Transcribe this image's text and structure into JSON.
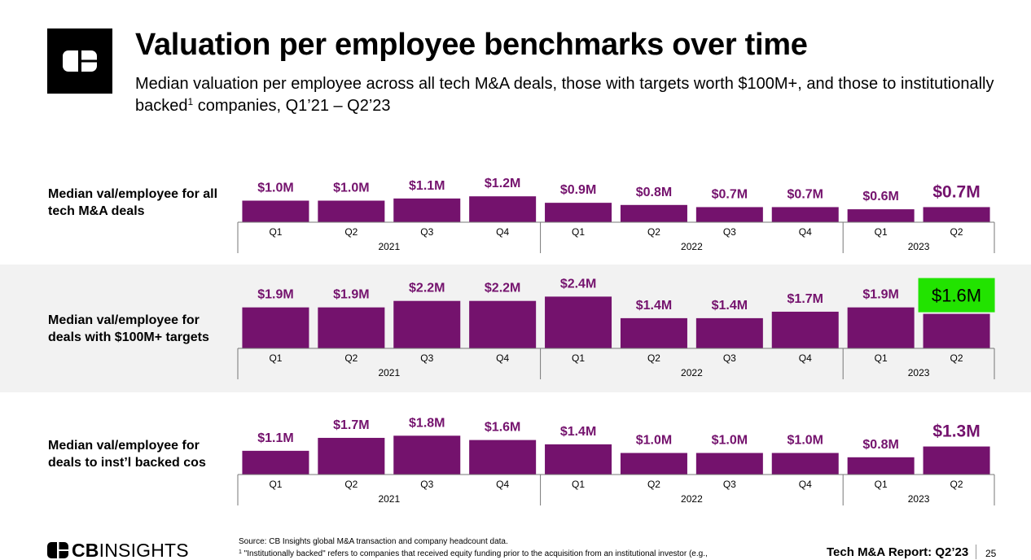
{
  "header": {
    "title": "Valuation per employee benchmarks over time",
    "subtitle_main": "Median valuation per employee across all tech M&A deals, those with targets worth $100M+, and those to institutionally backed",
    "subtitle_sup": "1",
    "subtitle_end": " companies, Q1’21 – Q2’23",
    "logo_icon": "cb-logo-icon"
  },
  "chart_data": [
    {
      "type": "bar",
      "row_label": "Median val/employee for all tech M&A deals",
      "categories": [
        "Q1 2021",
        "Q2 2021",
        "Q3 2021",
        "Q4 2021",
        "Q1 2022",
        "Q2 2022",
        "Q3 2022",
        "Q4 2022",
        "Q1 2023",
        "Q2 2023"
      ],
      "quarters": [
        "Q1",
        "Q2",
        "Q3",
        "Q4",
        "Q1",
        "Q2",
        "Q3",
        "Q4",
        "Q1",
        "Q2"
      ],
      "years": [
        "2021",
        "2022",
        "2023"
      ],
      "values": [
        1.0,
        1.0,
        1.1,
        1.2,
        0.9,
        0.8,
        0.7,
        0.7,
        0.6,
        0.7
      ],
      "labels": [
        "$1.0M",
        "$1.0M",
        "$1.1M",
        "$1.2M",
        "$0.9M",
        "$0.8M",
        "$0.7M",
        "$0.7M",
        "$0.6M",
        "$0.7M"
      ],
      "unit": "$M",
      "bar_color": "#74126d"
    },
    {
      "type": "bar",
      "row_label": "Median val/employee for deals with $100M+ targets",
      "categories": [
        "Q1 2021",
        "Q2 2021",
        "Q3 2021",
        "Q4 2021",
        "Q1 2022",
        "Q2 2022",
        "Q3 2022",
        "Q4 2022",
        "Q1 2023",
        "Q2 2023"
      ],
      "quarters": [
        "Q1",
        "Q2",
        "Q3",
        "Q4",
        "Q1",
        "Q2",
        "Q3",
        "Q4",
        "Q1",
        "Q2"
      ],
      "years": [
        "2021",
        "2022",
        "2023"
      ],
      "values": [
        1.9,
        1.9,
        2.2,
        2.2,
        2.4,
        1.4,
        1.4,
        1.7,
        1.9,
        1.6
      ],
      "labels": [
        "$1.9M",
        "$1.9M",
        "$2.2M",
        "$2.2M",
        "$2.4M",
        "$1.4M",
        "$1.4M",
        "$1.7M",
        "$1.9M",
        "$1.6M"
      ],
      "unit": "$M",
      "bar_color": "#74126d",
      "highlight_index": 9,
      "highlight_color": "#22e300"
    },
    {
      "type": "bar",
      "row_label": "Median val/employee for deals to inst’l backed cos",
      "categories": [
        "Q1 2021",
        "Q2 2021",
        "Q3 2021",
        "Q4 2021",
        "Q1 2022",
        "Q2 2022",
        "Q3 2022",
        "Q4 2022",
        "Q1 2023",
        "Q2 2023"
      ],
      "quarters": [
        "Q1",
        "Q2",
        "Q3",
        "Q4",
        "Q1",
        "Q2",
        "Q3",
        "Q4",
        "Q1",
        "Q2"
      ],
      "years": [
        "2021",
        "2022",
        "2023"
      ],
      "values": [
        1.1,
        1.7,
        1.8,
        1.6,
        1.4,
        1.0,
        1.0,
        1.0,
        0.8,
        1.3
      ],
      "labels": [
        "$1.1M",
        "$1.7M",
        "$1.8M",
        "$1.6M",
        "$1.4M",
        "$1.0M",
        "$1.0M",
        "$1.0M",
        "$0.8M",
        "$1.3M"
      ],
      "unit": "$M",
      "bar_color": "#74126d"
    }
  ],
  "footer": {
    "brand_bold": "CB",
    "brand_rest": "INSIGHTS",
    "brand_icon": "cb-logo-icon",
    "source_line": "Source: CB Insights global M&A transaction and company headcount data.",
    "footnote_sup": "1",
    "footnote_text": " \"Institutionally backed\" refers to companies that received equity funding prior to the acquisition from an institutional investor (e.g.,",
    "report_title": "Tech M&A Report: Q2’23",
    "page_number": "25"
  }
}
